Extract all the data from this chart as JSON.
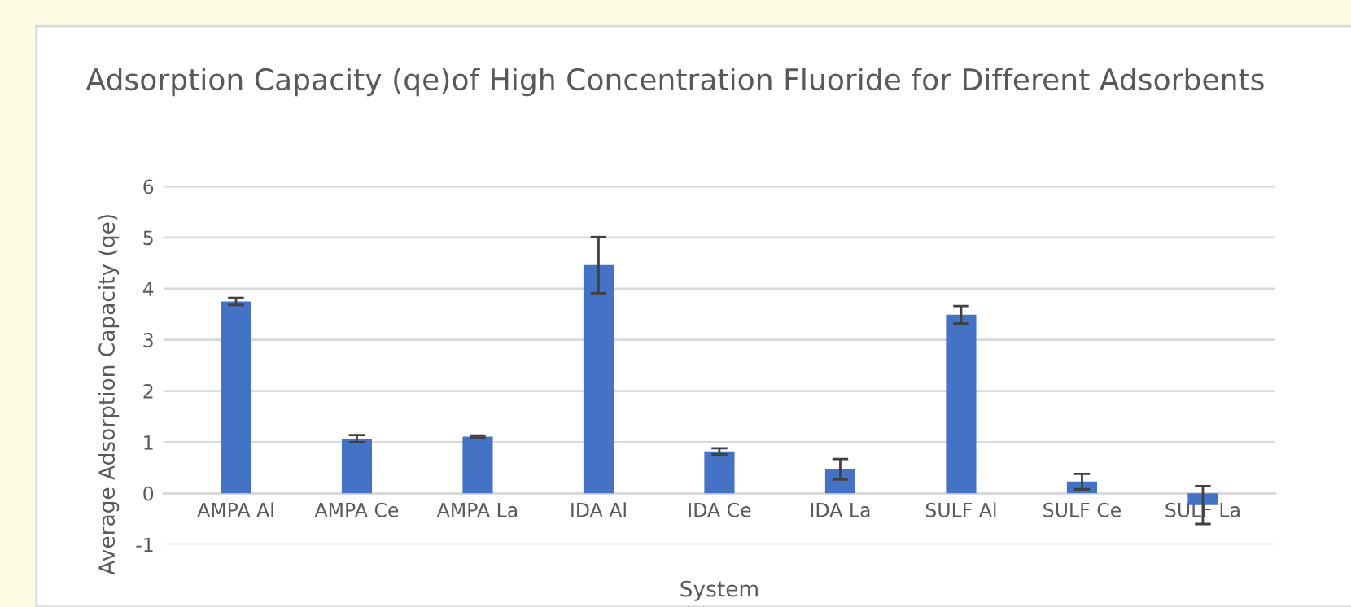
{
  "chart_data": {
    "type": "bar",
    "title": "Adsorption Capacity (qe)of High Concentration Fluoride for Different Adsorbents",
    "xlabel": "System",
    "ylabel": "Average Adsorption Capacity (qe)",
    "categories": [
      "AMPA Al",
      "AMPA Ce",
      "AMPA La",
      "IDA Al",
      "IDA Ce",
      "IDA La",
      "SULF Al",
      "SULF Ce",
      "SULF La"
    ],
    "values": [
      3.75,
      1.07,
      1.11,
      4.46,
      0.82,
      0.47,
      3.49,
      0.23,
      -0.23
    ],
    "errors": [
      0.07,
      0.07,
      0.02,
      0.55,
      0.06,
      0.2,
      0.17,
      0.15,
      0.37
    ],
    "color": "#4472c4",
    "ylim": [
      -1,
      6
    ],
    "yticks": [
      -1,
      0,
      1,
      2,
      3,
      4,
      5,
      6
    ],
    "grid": "y"
  }
}
